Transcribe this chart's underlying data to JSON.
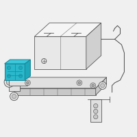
{
  "bg_color": "#f0f0f0",
  "highlight_color": "#29b8cc",
  "highlight_color2": "#1fa8bb",
  "highlight_color3": "#3dc8dc",
  "highlight_outline": "#1a8899",
  "line_color": "#4a4a4a",
  "fill_white": "#ffffff",
  "fill_light": "#f0f0f0",
  "fill_batt_front": "#e8e8e8",
  "fill_batt_top": "#f5f5f5",
  "fill_batt_right": "#d0d0d0",
  "fill_tray": "#e0e0e0",
  "fill_tray2": "#c8c8c8",
  "fig_width": 2.0,
  "fig_height": 2.0,
  "dpi": 100
}
